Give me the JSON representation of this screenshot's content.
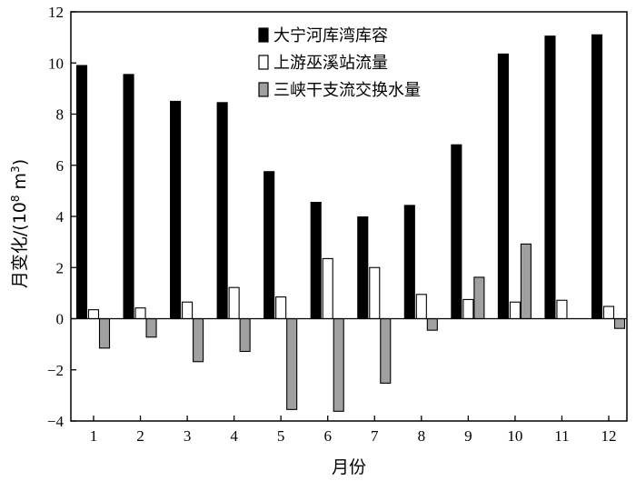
{
  "chart_data": {
    "type": "bar",
    "categories": [
      "1",
      "2",
      "3",
      "4",
      "5",
      "6",
      "7",
      "8",
      "9",
      "10",
      "11",
      "12"
    ],
    "xlabel": "月份",
    "ylabel_main": "月变化/(10",
    "ylabel_exp1": "8",
    "ylabel_unit": " m",
    "ylabel_exp2": "3",
    "ylabel_close": ")",
    "ylim": [
      -4,
      12
    ],
    "yticks": [
      -4,
      -2,
      0,
      2,
      4,
      6,
      8,
      10,
      12
    ],
    "grid": false,
    "legend_position": "top-right",
    "series": [
      {
        "name": "大宁河库湾库容",
        "color": "#000000",
        "values": [
          9.9,
          9.55,
          8.5,
          8.45,
          5.75,
          4.55,
          3.98,
          4.43,
          6.8,
          10.35,
          11.05,
          11.1
        ]
      },
      {
        "name": "上游巫溪站流量",
        "color": "#ffffff",
        "values": [
          0.35,
          0.42,
          0.65,
          1.22,
          0.85,
          2.35,
          2.0,
          0.95,
          0.75,
          0.65,
          0.72,
          0.48
        ]
      },
      {
        "name": "三峡干支流交换水量",
        "color": "#a0a0a0",
        "values": [
          -1.15,
          -0.72,
          -1.68,
          -1.28,
          -3.55,
          -3.62,
          -2.52,
          -0.45,
          1.62,
          2.92,
          0.0,
          -0.38
        ]
      }
    ]
  }
}
